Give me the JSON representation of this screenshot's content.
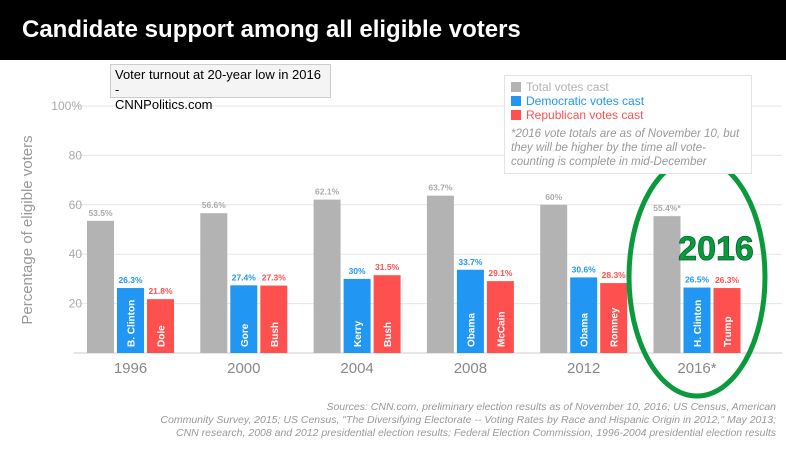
{
  "title": "Candidate support among all eligible voters",
  "chart_data": {
    "type": "bar",
    "title": "Candidate support among all eligible voters",
    "ylabel": "Percentage of eligible voters",
    "ylim": [
      0,
      100
    ],
    "yticks": [
      "",
      "20",
      "40",
      "60",
      "80",
      "100%"
    ],
    "grid": true,
    "legend_position": "top-right",
    "categories": [
      "1996",
      "2000",
      "2004",
      "2008",
      "2012",
      "2016*"
    ],
    "series": [
      {
        "name": "Total votes cast",
        "color": "#b3b3b3",
        "values": [
          53.5,
          56.6,
          62.1,
          63.7,
          60,
          55.4
        ],
        "labels": [
          "53.5%",
          "56.6%",
          "62.1%",
          "63.7%",
          "60%",
          "55.4%*"
        ],
        "candidates": [
          "",
          "",
          "",
          "",
          "",
          ""
        ]
      },
      {
        "name": "Democratic votes cast",
        "color": "#2196f3",
        "values": [
          26.3,
          27.4,
          30,
          33.7,
          30.6,
          26.5
        ],
        "labels": [
          "26.3%",
          "27.4%",
          "30%",
          "33.7%",
          "30.6%",
          "26.5%"
        ],
        "candidates": [
          "B. Clinton",
          "Gore",
          "Kerry",
          "Obama",
          "Obama",
          "H. Clinton"
        ]
      },
      {
        "name": "Republican votes cast",
        "color": "#ff5050",
        "values": [
          21.8,
          27.3,
          31.5,
          29.1,
          28.3,
          26.3
        ],
        "labels": [
          "21.8%",
          "27.3%",
          "31.5%",
          "29.1%",
          "28.3%",
          "26.3%"
        ],
        "candidates": [
          "Dole",
          "Bush",
          "Bush",
          "McCain",
          "Romney",
          "Trump"
        ]
      }
    ]
  },
  "legend_note": "*2016 vote totals are as of November 10, but they will be higher by the time all vote-counting is complete in mid-December",
  "annotation": {
    "text": "2016",
    "color": "#0a9a3c"
  },
  "tooltip": {
    "line1": "Voter turnout at 20-year low in 2016 -",
    "line2": "CNNPolitics.com"
  },
  "sources": [
    "Sources: CNN.com, preliminary election results as of November 10, 2016; US Census, American",
    "Community Survey, 2015; US Census, \"The Diversifying Electorate -- Voting Rates by Race and Hispanic Origin in 2012,\" May 2013;",
    "CNN research, 2008 and 2012 presidential election results; Federal Election Commission, 1996-2004 presidential election results"
  ]
}
